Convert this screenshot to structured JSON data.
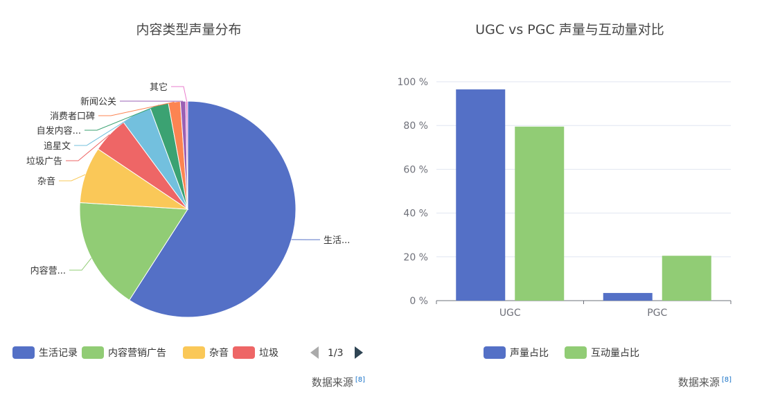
{
  "footer": {
    "source_label": "数据来源",
    "source_ref": "[8]"
  },
  "chart_data": [
    {
      "type": "pie",
      "title": "内容类型声量分布",
      "slices": [
        {
          "name": "生活记录",
          "label": "生活...",
          "value": 59.5,
          "color": "#5470c6"
        },
        {
          "name": "内容营销广告",
          "label": "内容营...",
          "value": 17.0,
          "color": "#91cc75"
        },
        {
          "name": "杂音",
          "label": "杂音",
          "value": 8.5,
          "color": "#fac858"
        },
        {
          "name": "垃圾广告",
          "label": "垃圾广告",
          "value": 5.5,
          "color": "#ee6666"
        },
        {
          "name": "追星文",
          "label": "追星文",
          "value": 4.5,
          "color": "#73c0de"
        },
        {
          "name": "自发内容",
          "label": "自发内容...",
          "value": 2.8,
          "color": "#3ba272"
        },
        {
          "name": "消费者口碑",
          "label": "消费者口碑",
          "value": 1.8,
          "color": "#fc8452"
        },
        {
          "name": "新闻公关",
          "label": "新闻公关",
          "value": 0.8,
          "color": "#9a60b4"
        },
        {
          "name": "其它",
          "label": "其它",
          "value": 0.3,
          "color": "#ea7ccc"
        }
      ],
      "legend": {
        "items": [
          {
            "label": "生活记录",
            "color": "#5470c6"
          },
          {
            "label": "内容营销广告",
            "color": "#91cc75"
          },
          {
            "label": "杂音",
            "color": "#fac858"
          },
          {
            "label": "垃圾",
            "color": "#ee6666"
          }
        ],
        "page": "1/3",
        "placement": "bottom"
      }
    },
    {
      "type": "bar",
      "title": "UGC vs PGC 声量与互动量对比",
      "categories": [
        "UGC",
        "PGC"
      ],
      "series": [
        {
          "name": "声量占比",
          "values": [
            96.5,
            3.5
          ],
          "color": "#5470c6"
        },
        {
          "name": "互动量占比",
          "values": [
            79.5,
            20.5
          ],
          "color": "#91cc75"
        }
      ],
      "ylim": [
        0,
        100
      ],
      "yticks": [
        0,
        20,
        40,
        60,
        80,
        100
      ],
      "ytick_suffix": " %",
      "grid": true,
      "legend_placement": "bottom"
    }
  ]
}
